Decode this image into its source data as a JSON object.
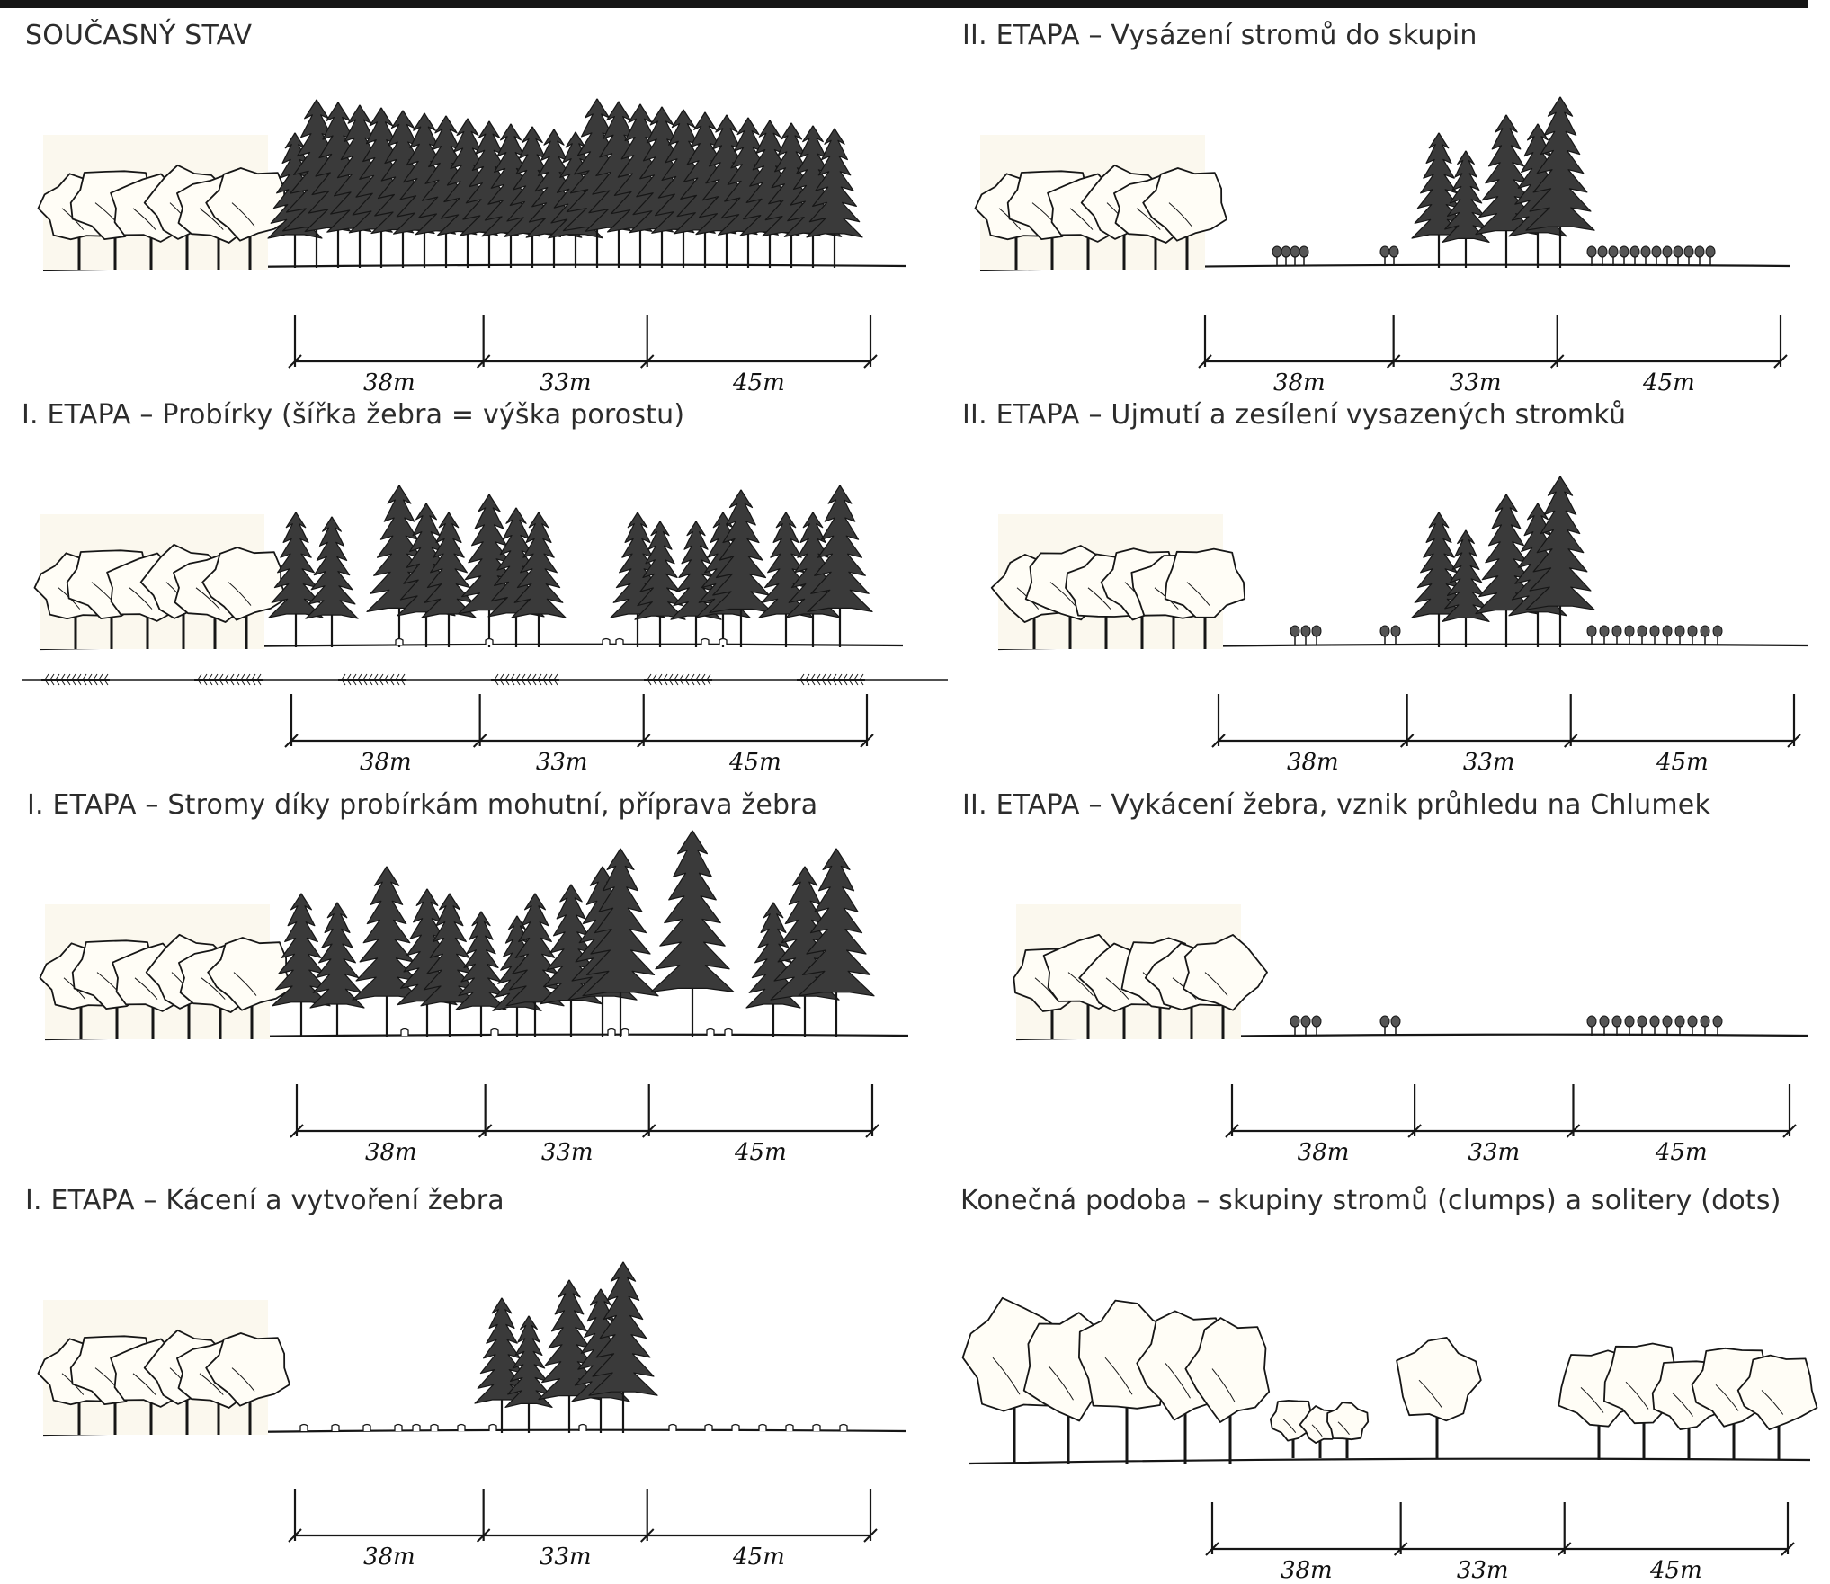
{
  "colors": {
    "ink": "#161616",
    "title_text": "#2c2c2c",
    "conifer_fill": "#3a3a3a",
    "deciduous_fill": "#fffdf6",
    "paper_tint": "#fbf8ee"
  },
  "icons": {
    "conifer": "spruce-tree-icon",
    "deciduous": "broadleaf-tree-icon",
    "sapling": "sapling-icon",
    "stump": "stump-icon",
    "felled": "felled-log-icon"
  },
  "panels": [
    {
      "title": "SOUČASNÝ STAV",
      "dims": [
        "38m",
        "33m",
        "45m"
      ],
      "scene": {
        "deciduous": "left-group",
        "conifers": "full-stand",
        "saplings": "none",
        "stumps": "none",
        "felled": false
      }
    },
    {
      "title": "I. ETAPA – Probírky (šířka žebra = výška porostu)",
      "dims": [
        "38m",
        "33m",
        "45m"
      ],
      "scene": {
        "deciduous": "left-group",
        "conifers": "thinned",
        "saplings": "none",
        "stumps": "few",
        "felled": true
      }
    },
    {
      "title": "I. ETAPA – Stromy díky probírkám mohutní, příprava žebra",
      "dims": [
        "38m",
        "33m",
        "45m"
      ],
      "scene": {
        "deciduous": "left-group",
        "conifers": "grown",
        "saplings": "none",
        "stumps": "few",
        "felled": false
      }
    },
    {
      "title": "I. ETAPA – Kácení a vytvoření žebra",
      "dims": [
        "38m",
        "33m",
        "45m"
      ],
      "scene": {
        "deciduous": "left-group",
        "conifers": "centre-clump",
        "saplings": "none",
        "stumps": "many",
        "felled": false
      }
    },
    {
      "title": "II. ETAPA – Vysázení stromů do skupin",
      "dims": [
        "38m",
        "33m",
        "45m"
      ],
      "scene": {
        "deciduous": "left-group",
        "conifers": "centre-clump",
        "saplings": "planted",
        "stumps": "none",
        "felled": false
      }
    },
    {
      "title": "II. ETAPA – Ujmutí a zesílení vysazených stromků",
      "dims": [
        "38m",
        "33m",
        "45m"
      ],
      "scene": {
        "deciduous": "left-group",
        "conifers": "centre-clump",
        "saplings": "established",
        "stumps": "none",
        "felled": false
      }
    },
    {
      "title": "II. ETAPA – Vykácení žebra, vznik průhledu na Chlumek",
      "dims": [
        "38m",
        "33m",
        "45m"
      ],
      "scene": {
        "deciduous": "left-group",
        "conifers": "none",
        "saplings": "established",
        "stumps": "none",
        "felled": false
      }
    },
    {
      "title": "Konečná podoba – skupiny stromů (clumps) a solitery (dots)",
      "dims": [
        "38m",
        "33m",
        "45m"
      ],
      "scene": {
        "deciduous": "clumps-and-dots",
        "conifers": "none",
        "saplings": "none",
        "stumps": "none",
        "felled": false
      }
    }
  ]
}
